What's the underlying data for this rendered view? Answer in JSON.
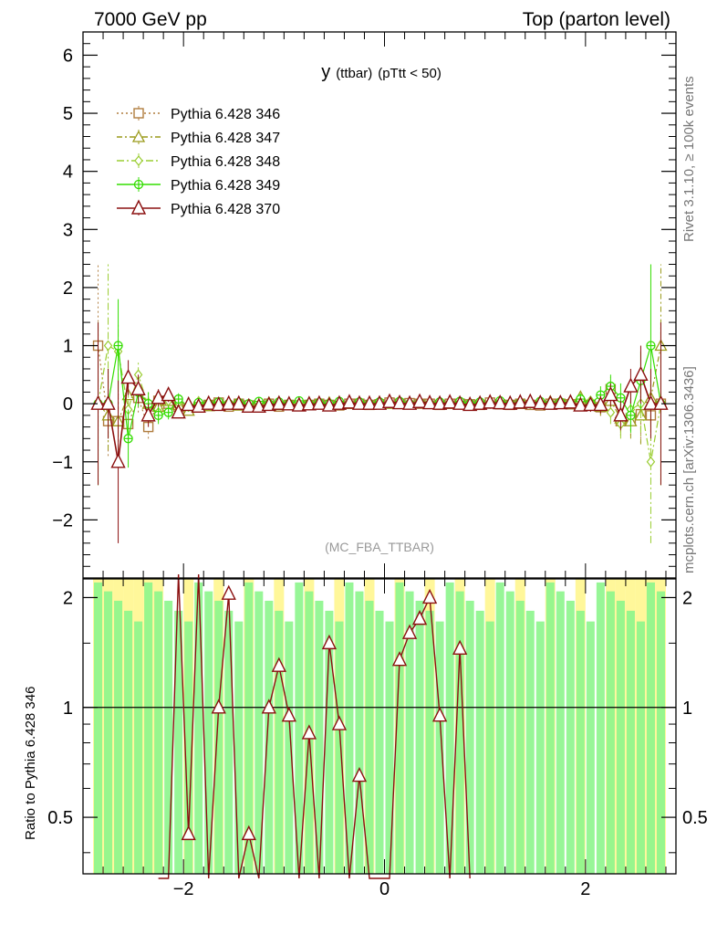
{
  "header": {
    "left": "7000 GeV pp",
    "right": "Top (parton level)"
  },
  "side_labels": {
    "rivet": "Rivet 3.1.10, ≥ 100k events",
    "mcplots": "mcplots.cern.ch [arXiv:1306.3436]"
  },
  "chart_data": {
    "type": "line",
    "title": "y (ttbar) (pTtt < 50)",
    "title_main": "y",
    "title_sub": "(ttbar)",
    "title_tail": "(pTtt < 50)",
    "analysis_tag": "(MC_FBA_TTBAR)",
    "xlim": [
      -3.0,
      2.9
    ],
    "ylim": [
      -3.0,
      6.4
    ],
    "x_ticks": [
      -2,
      0,
      2
    ],
    "x_tick_labels": [
      "−2",
      "0",
      "2"
    ],
    "y_ticks": [
      -2,
      -1,
      0,
      1,
      2,
      3,
      4,
      5,
      6
    ],
    "y_tick_labels": [
      "−2",
      "−1",
      "0",
      "1",
      "2",
      "3",
      "4",
      "5",
      "6"
    ],
    "legend_position": "top-left",
    "x": [
      -2.85,
      -2.75,
      -2.65,
      -2.55,
      -2.45,
      -2.35,
      -2.25,
      -2.15,
      -2.05,
      -1.95,
      -1.85,
      -1.75,
      -1.65,
      -1.55,
      -1.45,
      -1.35,
      -1.25,
      -1.15,
      -1.05,
      -0.95,
      -0.85,
      -0.75,
      -0.65,
      -0.55,
      -0.45,
      -0.35,
      -0.25,
      -0.15,
      -0.05,
      0.05,
      0.15,
      0.25,
      0.35,
      0.45,
      0.55,
      0.65,
      0.75,
      0.85,
      0.95,
      1.05,
      1.15,
      1.25,
      1.35,
      1.45,
      1.55,
      1.65,
      1.75,
      1.85,
      1.95,
      2.05,
      2.15,
      2.25,
      2.35,
      2.45,
      2.55,
      2.65,
      2.75
    ],
    "series": [
      {
        "name": "Pythia 6.428 346",
        "color": "#b07d3f",
        "marker": "square",
        "dash": "2,3",
        "values": [
          1.0,
          -0.3,
          -0.3,
          -0.35,
          0.1,
          -0.4,
          0.05,
          0.0,
          -0.05,
          -0.1,
          -0.05,
          -0.02,
          0.02,
          -0.05,
          0.0,
          -0.03,
          -0.03,
          0.0,
          -0.05,
          -0.02,
          -0.03,
          -0.02,
          0.0,
          -0.02,
          -0.03,
          0.0,
          0.0,
          -0.02,
          -0.01,
          0.02,
          0.0,
          0.01,
          0.0,
          0.0,
          -0.02,
          0.0,
          0.0,
          -0.01,
          -0.02,
          0.02,
          -0.01,
          -0.02,
          0.0,
          -0.02,
          -0.03,
          0.0,
          0.0,
          -0.01,
          0.0,
          -0.02,
          -0.06,
          0.25,
          -0.3,
          -0.25,
          -0.18,
          -0.2,
          0.0
        ],
        "err": [
          1.4,
          0.6,
          0.5,
          0.3,
          0.25,
          0.2,
          0.15,
          0.12,
          0.1,
          0.08,
          0.07,
          0.06,
          0.05,
          0.05,
          0.05,
          0.04,
          0.04,
          0.04,
          0.04,
          0.04,
          0.04,
          0.04,
          0.04,
          0.04,
          0.04,
          0.04,
          0.04,
          0.04,
          0.04,
          0.04,
          0.04,
          0.04,
          0.04,
          0.04,
          0.04,
          0.04,
          0.04,
          0.04,
          0.04,
          0.04,
          0.04,
          0.05,
          0.05,
          0.05,
          0.05,
          0.06,
          0.07,
          0.08,
          0.1,
          0.12,
          0.15,
          0.2,
          0.25,
          0.3,
          0.5,
          0.6,
          1.4
        ]
      },
      {
        "name": "Pythia 6.428 347",
        "color": "#9a9a1a",
        "marker": "triangle",
        "dash": "6,3,2,3",
        "values": [
          0.0,
          -0.2,
          -0.3,
          0.15,
          0.25,
          0.0,
          -0.05,
          0.05,
          -0.02,
          -0.12,
          0.02,
          -0.04,
          0.0,
          0.02,
          -0.03,
          -0.02,
          0.0,
          0.02,
          -0.02,
          0.0,
          -0.04,
          0.02,
          0.0,
          0.02,
          0.0,
          0.0,
          0.02,
          0.0,
          0.03,
          0.0,
          0.02,
          0.0,
          0.03,
          0.0,
          0.01,
          0.0,
          0.02,
          0.0,
          0.02,
          0.04,
          0.0,
          0.02,
          0.0,
          0.03,
          0.0,
          0.04,
          0.02,
          0.0,
          0.12,
          0.0,
          -0.05,
          0.05,
          -0.25,
          -0.3,
          -0.2,
          0.1,
          1.0
        ],
        "err": [
          1.4,
          0.6,
          0.5,
          0.3,
          0.25,
          0.2,
          0.15,
          0.12,
          0.1,
          0.08,
          0.07,
          0.06,
          0.05,
          0.05,
          0.05,
          0.04,
          0.04,
          0.04,
          0.04,
          0.04,
          0.04,
          0.04,
          0.04,
          0.04,
          0.04,
          0.04,
          0.04,
          0.04,
          0.04,
          0.04,
          0.04,
          0.04,
          0.04,
          0.04,
          0.04,
          0.04,
          0.04,
          0.04,
          0.04,
          0.04,
          0.04,
          0.05,
          0.05,
          0.05,
          0.05,
          0.06,
          0.07,
          0.08,
          0.1,
          0.12,
          0.15,
          0.2,
          0.25,
          0.3,
          0.5,
          0.6,
          1.4
        ]
      },
      {
        "name": "Pythia 6.428 348",
        "color": "#9acd32",
        "marker": "diamond",
        "dash": "8,3,2,3",
        "values": [
          0.0,
          1.0,
          0.9,
          -0.1,
          0.5,
          -0.05,
          -0.15,
          0.05,
          0.02,
          -0.05,
          0.04,
          -0.02,
          0.0,
          0.02,
          0.0,
          -0.02,
          0.03,
          0.0,
          0.02,
          0.0,
          0.03,
          0.0,
          0.02,
          0.0,
          0.03,
          0.0,
          0.02,
          0.0,
          0.02,
          0.0,
          0.03,
          0.0,
          0.02,
          0.0,
          0.03,
          0.0,
          0.02,
          0.0,
          0.03,
          0.0,
          0.02,
          0.0,
          0.03,
          0.0,
          0.02,
          0.0,
          0.03,
          0.05,
          0.0,
          0.05,
          0.0,
          -0.15,
          -0.35,
          -0.1,
          0.0,
          -1.0,
          0.0
        ],
        "err": [
          1.4,
          1.4,
          0.5,
          0.3,
          0.25,
          0.2,
          0.15,
          0.12,
          0.1,
          0.08,
          0.07,
          0.06,
          0.05,
          0.05,
          0.05,
          0.04,
          0.04,
          0.04,
          0.04,
          0.04,
          0.04,
          0.04,
          0.04,
          0.04,
          0.04,
          0.04,
          0.04,
          0.04,
          0.04,
          0.04,
          0.04,
          0.04,
          0.04,
          0.04,
          0.04,
          0.04,
          0.04,
          0.04,
          0.04,
          0.04,
          0.04,
          0.05,
          0.05,
          0.05,
          0.05,
          0.06,
          0.07,
          0.08,
          0.1,
          0.12,
          0.15,
          0.2,
          0.25,
          0.3,
          0.5,
          1.4,
          1.4
        ]
      },
      {
        "name": "Pythia 6.428 349",
        "color": "#33dd00",
        "marker": "circle-plus",
        "dash": "",
        "values": [
          0.0,
          0.0,
          1.0,
          -0.6,
          0.2,
          0.0,
          -0.2,
          -0.15,
          0.08,
          -0.05,
          0.02,
          0.0,
          0.03,
          0.0,
          0.02,
          0.0,
          0.04,
          0.0,
          0.03,
          0.0,
          0.05,
          0.0,
          0.02,
          0.0,
          0.04,
          0.0,
          0.03,
          0.0,
          0.03,
          0.0,
          0.04,
          0.0,
          0.02,
          0.0,
          0.03,
          0.0,
          0.04,
          0.0,
          0.03,
          0.0,
          0.05,
          0.0,
          0.02,
          0.0,
          0.04,
          0.0,
          0.03,
          0.0,
          0.08,
          0.0,
          0.15,
          0.3,
          0.1,
          -0.2,
          0.4,
          1.0,
          0.0
        ],
        "err": [
          1.4,
          0.6,
          0.8,
          0.5,
          0.25,
          0.2,
          0.15,
          0.12,
          0.1,
          0.08,
          0.07,
          0.06,
          0.05,
          0.05,
          0.05,
          0.04,
          0.04,
          0.04,
          0.04,
          0.04,
          0.04,
          0.04,
          0.04,
          0.04,
          0.04,
          0.04,
          0.04,
          0.04,
          0.04,
          0.04,
          0.04,
          0.04,
          0.04,
          0.04,
          0.04,
          0.04,
          0.04,
          0.04,
          0.04,
          0.04,
          0.04,
          0.05,
          0.05,
          0.05,
          0.05,
          0.06,
          0.07,
          0.08,
          0.1,
          0.12,
          0.15,
          0.2,
          0.25,
          0.3,
          0.5,
          1.4,
          1.4
        ]
      },
      {
        "name": "Pythia 6.428 370",
        "color": "#8b1010",
        "marker": "triangle-large",
        "dash": "",
        "values": [
          0.0,
          0.0,
          -1.0,
          0.45,
          0.25,
          -0.2,
          0.1,
          0.15,
          -0.15,
          -0.02,
          -0.05,
          0.0,
          -0.02,
          0.0,
          0.0,
          -0.05,
          -0.05,
          -0.02,
          0.0,
          -0.01,
          -0.03,
          -0.01,
          0.0,
          -0.03,
          0.0,
          0.02,
          0.0,
          0.0,
          0.0,
          0.03,
          0.01,
          0.0,
          0.03,
          0.01,
          0.0,
          0.02,
          0.0,
          -0.02,
          0.0,
          0.02,
          0.01,
          0.0,
          0.02,
          0.03,
          0.01,
          0.0,
          0.01,
          0.02,
          -0.03,
          -0.02,
          -0.02,
          0.15,
          -0.2,
          0.3,
          0.5,
          0.0,
          0.0
        ],
        "err": [
          1.4,
          0.6,
          1.4,
          0.3,
          0.25,
          0.2,
          0.15,
          0.12,
          0.1,
          0.08,
          0.07,
          0.06,
          0.05,
          0.05,
          0.05,
          0.04,
          0.04,
          0.04,
          0.04,
          0.04,
          0.04,
          0.04,
          0.04,
          0.04,
          0.04,
          0.04,
          0.04,
          0.04,
          0.04,
          0.04,
          0.04,
          0.04,
          0.04,
          0.04,
          0.04,
          0.04,
          0.04,
          0.04,
          0.04,
          0.04,
          0.04,
          0.05,
          0.05,
          0.05,
          0.05,
          0.06,
          0.07,
          0.08,
          0.1,
          0.12,
          0.15,
          0.2,
          0.25,
          0.3,
          0.5,
          0.6,
          1.4
        ]
      }
    ],
    "ratio": {
      "ylabel": "Ratio to Pythia 6.428 346",
      "ylim": [
        0.35,
        2.25
      ],
      "y_ticks": [
        0.5,
        1,
        2
      ],
      "y_tick_labels": [
        "0.5",
        "1",
        "2"
      ],
      "reference_line": 1.0,
      "series_370_values": [
        0.0,
        0.0,
        3.0,
        0.45,
        3.0,
        0.0,
        1.0,
        2.05,
        0.0,
        0.45,
        0.0,
        1.0,
        1.3,
        0.95,
        0.0,
        0.85,
        0.0,
        1.5,
        0.9,
        0.0,
        0.65,
        0.0,
        0.0,
        0.0,
        1.35,
        1.6,
        1.75,
        2.0,
        0.95,
        0.0,
        1.45,
        0.0
      ]
    }
  }
}
